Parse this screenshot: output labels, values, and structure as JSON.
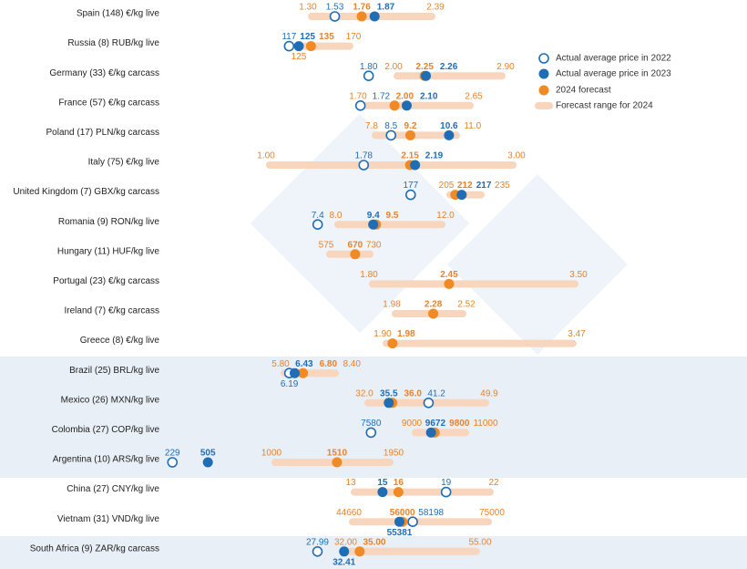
{
  "chart_data": {
    "type": "dot-range",
    "categories": [
      "Spain (148) €/kg live",
      "Russia (8) RUB/kg live",
      "Germany (33) €/kg carcass",
      "France (57) €/kg carcass",
      "Poland (17) PLN/kg carcass",
      "Italy (75) €/kg live",
      "United Kingdom (7) GBX/kg carcass",
      "Romania (9) RON/kg live",
      "Hungary (11) HUF/kg live",
      "Portugal (23) €/kg carcass",
      "Ireland (7) €/kg carcass",
      "Greece (8) €/kg live",
      "Brazil (25) BRL/kg live",
      "Mexico (26) MXN/kg live",
      "Colombia (27) COP/kg live",
      "Argentina (10) ARS/kg live",
      "China (27) CNY/kg live",
      "Vietnam (31) VND/kg live",
      "South Africa (9) ZAR/kg carcass"
    ],
    "series": [
      {
        "name": "Actual average price in 2022",
        "color": "#1f6db5",
        "marker": "open",
        "values": [
          1.53,
          117,
          1.8,
          1.72,
          8.5,
          1.78,
          177,
          7.4,
          null,
          null,
          null,
          null,
          6.19,
          41.2,
          7580,
          229,
          19,
          58198,
          27.99
        ],
        "value_labels": [
          "1.53",
          "117",
          "1.80",
          "1.72",
          "8.5",
          "1.78",
          "177",
          "7.4",
          null,
          null,
          null,
          null,
          "6.19",
          "41.2",
          "7580",
          "229",
          "19",
          "58198",
          "27.99"
        ]
      },
      {
        "name": "Actual average price in 2023",
        "color": "#1f6db5",
        "marker": "filled",
        "values": [
          1.87,
          125,
          2.26,
          2.1,
          10.6,
          2.19,
          217,
          9.4,
          null,
          null,
          null,
          null,
          6.43,
          35.5,
          9672,
          505,
          15,
          55381,
          32.41
        ],
        "value_labels": [
          "1.87",
          "125",
          "2.26",
          "2.10",
          "10.6",
          "2.19",
          "217",
          "9.4",
          null,
          null,
          null,
          null,
          "6.43",
          "35.5",
          "9672",
          "505",
          "15",
          "55381",
          "32.41"
        ]
      },
      {
        "name": "2024 forecast",
        "color": "#f08a24",
        "marker": "filled",
        "values": [
          1.76,
          135,
          2.25,
          2.0,
          9.2,
          2.15,
          212,
          9.5,
          670,
          2.45,
          2.28,
          1.98,
          6.8,
          36.0,
          9800,
          1510,
          16,
          56000,
          35.0
        ],
        "value_labels": [
          "1.76",
          "135",
          "2.25",
          "2.00",
          "9.2",
          "2.15",
          "212",
          "9.5",
          "670",
          "2.45",
          "2.28",
          "1.98",
          "6.80",
          "36.0",
          "9800",
          "1510",
          "16",
          "56000",
          "35.00"
        ]
      }
    ],
    "range": {
      "name": "Forecast range for 2024",
      "color": "#f8d5bd",
      "low": [
        1.3,
        125,
        2.0,
        1.7,
        7.8,
        1.0,
        205,
        8.0,
        575,
        1.8,
        1.98,
        1.9,
        5.8,
        32.0,
        9000,
        1000,
        13,
        44660,
        32.0
      ],
      "low_labels": [
        "1.30",
        "125",
        "2.00",
        "1.70",
        "7.8",
        "1.00",
        "205",
        "8.0",
        "575",
        "1.80",
        "1.98",
        "1.90",
        "5.80",
        "32.0",
        "9000",
        "1000",
        "13",
        "44660",
        "32.00"
      ],
      "high": [
        2.39,
        170,
        2.9,
        2.65,
        11.0,
        3.0,
        235,
        12.0,
        730,
        3.5,
        2.52,
        3.47,
        8.4,
        49.9,
        11000,
        1950,
        22,
        75000,
        55.0
      ],
      "high_labels": [
        "2.39",
        "170",
        "2.90",
        "2.65",
        "11.0",
        "3.00",
        "235",
        "12.0",
        "730",
        "3.50",
        "2.52",
        "3.47",
        "8.40",
        "49.9",
        "11000",
        "1950",
        "22",
        "75000",
        "55.00"
      ]
    }
  }
}
